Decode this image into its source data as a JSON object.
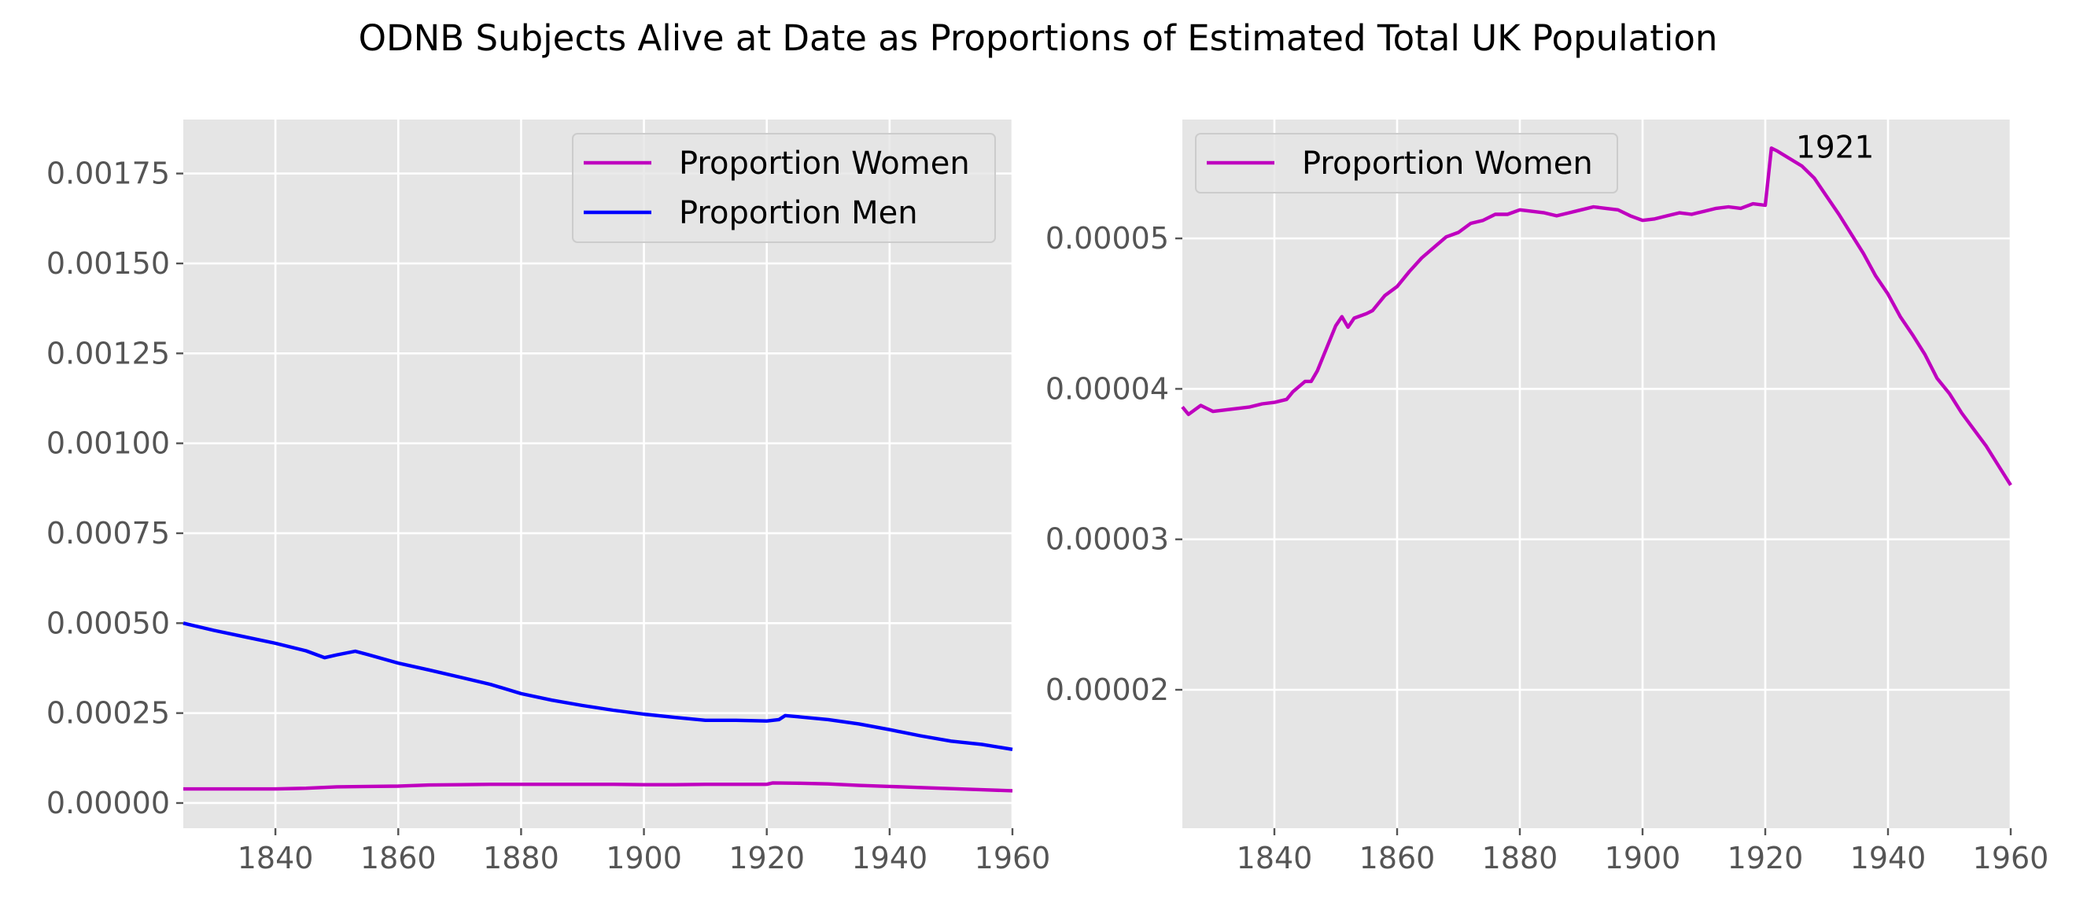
{
  "title": "ODNB Subjects Alive at Date as Proportions of Estimated Total UK Population",
  "chart_data": [
    {
      "type": "line",
      "grid": true,
      "legend": "top-right",
      "xlim": [
        1825,
        1960
      ],
      "ylim": [
        -7e-05,
        0.0019
      ],
      "xticks": [
        1840,
        1860,
        1880,
        1900,
        1920,
        1940,
        1960
      ],
      "xtick_labels": [
        "1840",
        "1860",
        "1880",
        "1900",
        "1920",
        "1940",
        "1960"
      ],
      "yticks": [
        0,
        0.00025,
        0.0005,
        0.00075,
        0.001,
        0.00125,
        0.0015,
        0.00175
      ],
      "ytick_labels": [
        "0.00000",
        "0.00025",
        "0.00050",
        "0.00075",
        "0.00100",
        "0.00125",
        "0.00150",
        "0.00175"
      ],
      "series": [
        {
          "name": "Proportion Women",
          "color": "#bf00bf",
          "x": [
            1825,
            1830,
            1835,
            1840,
            1845,
            1850,
            1855,
            1860,
            1865,
            1870,
            1875,
            1880,
            1885,
            1890,
            1895,
            1900,
            1905,
            1910,
            1915,
            1920,
            1921,
            1925,
            1930,
            1935,
            1940,
            1945,
            1950,
            1955,
            1960
          ],
          "y": [
            3.9e-05,
            3.9e-05,
            3.9e-05,
            3.9e-05,
            4.1e-05,
            4.5e-05,
            4.6e-05,
            4.7e-05,
            5e-05,
            5.1e-05,
            5.2e-05,
            5.2e-05,
            5.2e-05,
            5.2e-05,
            5.2e-05,
            5.1e-05,
            5.1e-05,
            5.2e-05,
            5.2e-05,
            5.2e-05,
            5.6e-05,
            5.5e-05,
            5.3e-05,
            4.9e-05,
            4.6e-05,
            4.3e-05,
            4e-05,
            3.7e-05,
            3.4e-05
          ]
        },
        {
          "name": "Proportion Men",
          "color": "#0000ff",
          "x": [
            1825,
            1830,
            1835,
            1840,
            1845,
            1848,
            1850,
            1853,
            1855,
            1860,
            1865,
            1870,
            1875,
            1880,
            1885,
            1890,
            1895,
            1900,
            1905,
            1910,
            1915,
            1920,
            1922,
            1923,
            1925,
            1930,
            1935,
            1940,
            1945,
            1950,
            1955,
            1960
          ],
          "y": [
            0.0005,
            0.00048,
            0.000462,
            0.000444,
            0.000423,
            0.000404,
            0.000412,
            0.000422,
            0.000413,
            0.000389,
            0.00037,
            0.00035,
            0.00033,
            0.000304,
            0.000286,
            0.000271,
            0.000258,
            0.000247,
            0.000238,
            0.00023,
            0.00023,
            0.000228,
            0.000232,
            0.000243,
            0.00024,
            0.000232,
            0.00022,
            0.000204,
            0.000187,
            0.000172,
            0.000163,
            0.000149
          ]
        }
      ]
    },
    {
      "type": "line",
      "grid": true,
      "legend": "top-left",
      "xlim": [
        1825,
        1960
      ],
      "ylim": [
        1.08e-05,
        5.79e-05
      ],
      "xticks": [
        1840,
        1860,
        1880,
        1900,
        1920,
        1940,
        1960
      ],
      "xtick_labels": [
        "1840",
        "1860",
        "1880",
        "1900",
        "1920",
        "1940",
        "1960"
      ],
      "yticks": [
        2e-05,
        3e-05,
        4e-05,
        5e-05
      ],
      "ytick_labels": [
        "0.00002",
        "0.00003",
        "0.00004",
        "0.00005"
      ],
      "annotation": {
        "text": "1921",
        "x": 1925,
        "y": 5.61e-05
      },
      "series": [
        {
          "name": "Proportion Women",
          "color": "#bf00bf",
          "x": [
            1825,
            1826,
            1828,
            1829,
            1830,
            1832,
            1834,
            1836,
            1838,
            1840,
            1842,
            1843,
            1845,
            1846,
            1847,
            1848,
            1850,
            1851,
            1852,
            1853,
            1855,
            1856,
            1858,
            1860,
            1862,
            1864,
            1866,
            1868,
            1870,
            1872,
            1874,
            1876,
            1878,
            1880,
            1882,
            1884,
            1886,
            1888,
            1890,
            1892,
            1894,
            1896,
            1898,
            1900,
            1902,
            1904,
            1906,
            1908,
            1910,
            1912,
            1914,
            1916,
            1918,
            1920,
            1921,
            1922,
            1924,
            1926,
            1928,
            1930,
            1932,
            1934,
            1936,
            1938,
            1940,
            1942,
            1944,
            1946,
            1948,
            1950,
            1952,
            1954,
            1956,
            1958,
            1960
          ],
          "y": [
            3.88e-05,
            3.83e-05,
            3.89e-05,
            3.87e-05,
            3.85e-05,
            3.86e-05,
            3.87e-05,
            3.88e-05,
            3.9e-05,
            3.91e-05,
            3.93e-05,
            3.98e-05,
            4.05e-05,
            4.05e-05,
            4.12e-05,
            4.22e-05,
            4.42e-05,
            4.48e-05,
            4.41e-05,
            4.47e-05,
            4.5e-05,
            4.52e-05,
            4.62e-05,
            4.68e-05,
            4.78e-05,
            4.87e-05,
            4.94e-05,
            5.01e-05,
            5.04e-05,
            5.1e-05,
            5.12e-05,
            5.16e-05,
            5.16e-05,
            5.19e-05,
            5.18e-05,
            5.17e-05,
            5.15e-05,
            5.17e-05,
            5.19e-05,
            5.21e-05,
            5.2e-05,
            5.19e-05,
            5.15e-05,
            5.12e-05,
            5.13e-05,
            5.15e-05,
            5.17e-05,
            5.16e-05,
            5.18e-05,
            5.2e-05,
            5.21e-05,
            5.2e-05,
            5.23e-05,
            5.22e-05,
            5.6e-05,
            5.58e-05,
            5.53e-05,
            5.48e-05,
            5.4e-05,
            5.28e-05,
            5.16e-05,
            5.03e-05,
            4.9e-05,
            4.75e-05,
            4.63e-05,
            4.48e-05,
            4.36e-05,
            4.23e-05,
            4.07e-05,
            3.97e-05,
            3.84e-05,
            3.73e-05,
            3.62e-05,
            3.49e-05,
            3.36e-05
          ]
        }
      ]
    }
  ]
}
